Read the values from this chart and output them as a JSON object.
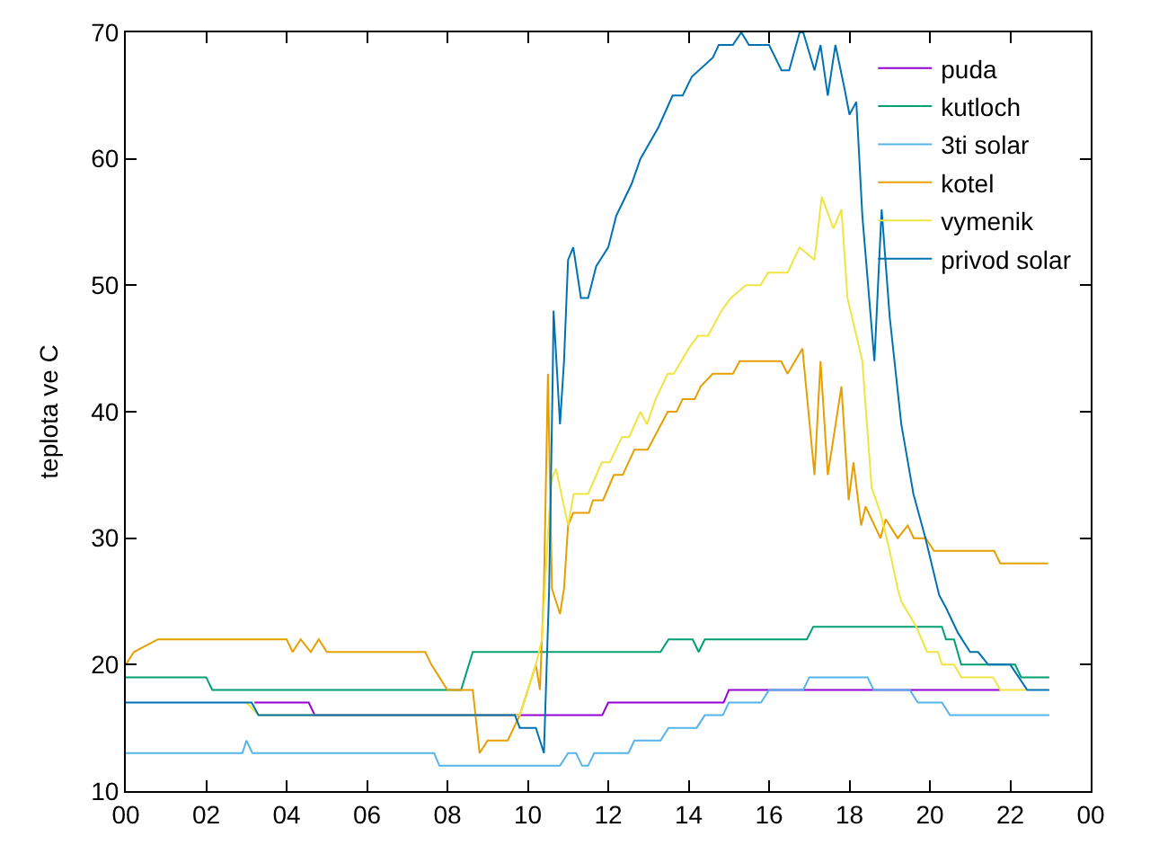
{
  "chart_data": {
    "type": "line",
    "ylabel": "teplota ve C",
    "xlim": [
      0,
      24
    ],
    "ylim": [
      10,
      70
    ],
    "xticks": [
      {
        "value": 0,
        "label": "00"
      },
      {
        "value": 2,
        "label": "02"
      },
      {
        "value": 4,
        "label": "04"
      },
      {
        "value": 6,
        "label": "06"
      },
      {
        "value": 8,
        "label": "08"
      },
      {
        "value": 10,
        "label": "10"
      },
      {
        "value": 12,
        "label": "12"
      },
      {
        "value": 14,
        "label": "14"
      },
      {
        "value": 16,
        "label": "16"
      },
      {
        "value": 18,
        "label": "18"
      },
      {
        "value": 20,
        "label": "20"
      },
      {
        "value": 22,
        "label": "22"
      },
      {
        "value": 24,
        "label": "00"
      }
    ],
    "yticks": [
      10,
      20,
      30,
      40,
      50,
      60,
      70
    ],
    "grid": false,
    "legend": "top right",
    "marker": "none",
    "line_style": "solid",
    "series": [
      {
        "name": "puda",
        "color": "#9400d3",
        "x": [
          3.2,
          4.55,
          4.7,
          11.85,
          12.0,
          14.87,
          15.0,
          21.75
        ],
        "values": [
          17,
          17,
          16,
          16,
          17,
          17,
          18,
          18
        ]
      },
      {
        "name": "kutloch",
        "color": "#009e73",
        "x": [
          0,
          2.0,
          2.15,
          8.34,
          8.63,
          13.3,
          13.5,
          14.1,
          14.25,
          14.4,
          16.94,
          17.1,
          20.3,
          20.4,
          20.6,
          20.78,
          22.12,
          22.27,
          22.97
        ],
        "values": [
          19,
          19,
          18,
          18,
          21,
          21,
          22,
          22,
          21,
          22,
          22,
          23,
          23,
          22,
          22,
          20,
          20,
          19,
          19
        ]
      },
      {
        "name": "3ti solar",
        "color": "#56b4e9",
        "x": [
          0,
          2.9,
          3.0,
          3.15,
          7.67,
          7.8,
          10.8,
          11.0,
          11.2,
          11.35,
          11.5,
          11.65,
          12.5,
          12.65,
          13.3,
          13.5,
          14.2,
          14.4,
          14.85,
          15.0,
          15.8,
          16.0,
          16.85,
          17.0,
          18.45,
          18.6,
          19.5,
          19.7,
          20.3,
          20.5,
          22.97
        ],
        "values": [
          13,
          13,
          14,
          13,
          13,
          12,
          12,
          13,
          13,
          12,
          12,
          13,
          13,
          14,
          14,
          15,
          15,
          16,
          16,
          17,
          17,
          18,
          18,
          19,
          19,
          18,
          18,
          17,
          17,
          16,
          16
        ]
      },
      {
        "name": "kotel",
        "color": "#e69f00",
        "x": [
          0,
          0.2,
          0.8,
          4.0,
          4.15,
          4.35,
          4.6,
          4.8,
          5.0,
          7.45,
          7.6,
          7.8,
          8.0,
          8.63,
          8.8,
          9.0,
          9.5,
          9.8,
          10.2,
          10.3,
          10.4,
          10.5,
          10.6,
          10.8,
          10.9,
          11.0,
          11.13,
          11.52,
          11.62,
          11.87,
          12.14,
          12.36,
          12.65,
          12.98,
          13.48,
          13.7,
          13.85,
          14.15,
          14.3,
          14.6,
          15.1,
          15.27,
          16.3,
          16.46,
          16.83,
          17.13,
          17.28,
          17.46,
          17.8,
          17.98,
          18.1,
          18.29,
          18.4,
          18.77,
          18.9,
          19.2,
          19.45,
          19.6,
          19.9,
          20.1,
          21.6,
          21.75,
          22.94
        ],
        "values": [
          20,
          21,
          22,
          22,
          21,
          22,
          21,
          22,
          21,
          21,
          20,
          19,
          18,
          18,
          13,
          14,
          14,
          16,
          20,
          18,
          26,
          43,
          26,
          24,
          26,
          31,
          32,
          32,
          33,
          33,
          35,
          35,
          37,
          37,
          40,
          40,
          41,
          41,
          42,
          43,
          43,
          44,
          44,
          43,
          45,
          35,
          44,
          35,
          42,
          33,
          36,
          31,
          32.5,
          30,
          31.5,
          30,
          31,
          30,
          30,
          29,
          29,
          28,
          28
        ]
      },
      {
        "name": "vymenik",
        "color": "#f0e442",
        "x": [
          3.0,
          3.3,
          9.8,
          10.2,
          10.35,
          10.58,
          10.7,
          11.0,
          11.14,
          11.5,
          11.84,
          12.04,
          12.34,
          12.52,
          12.8,
          12.96,
          13.18,
          13.48,
          13.63,
          14.0,
          14.23,
          14.48,
          14.82,
          15.05,
          15.42,
          15.79,
          15.97,
          16.46,
          16.76,
          17.13,
          17.31,
          17.6,
          17.8,
          17.95,
          18.32,
          18.55,
          18.77,
          19.0,
          19.2,
          19.29,
          19.66,
          19.93,
          20.2,
          20.3,
          20.6,
          20.78,
          21.57,
          21.75,
          22.4
        ],
        "values": [
          17,
          16,
          16,
          20,
          22,
          34.5,
          35.5,
          31,
          33.5,
          33.5,
          36,
          36,
          38,
          38,
          40,
          39,
          41,
          43,
          43,
          45,
          46,
          46,
          48,
          49,
          50,
          50,
          51,
          51,
          53,
          52,
          57,
          54.5,
          56,
          49,
          44,
          34,
          32,
          29,
          26,
          25,
          23,
          21,
          21,
          20,
          20,
          19,
          19,
          18,
          18
        ]
      },
      {
        "name": "privod solar",
        "color": "#0072b2",
        "x": [
          0,
          3.13,
          3.3,
          9.68,
          9.8,
          10.2,
          10.4,
          10.53,
          10.62,
          10.64,
          10.8,
          10.9,
          11.0,
          11.13,
          11.32,
          11.5,
          11.7,
          12.0,
          12.2,
          12.58,
          12.8,
          13.25,
          13.6,
          13.85,
          14.08,
          14.6,
          14.75,
          15.1,
          15.31,
          15.5,
          16.0,
          16.31,
          16.5,
          16.76,
          16.85,
          17.13,
          17.28,
          17.46,
          17.65,
          17.88,
          18.0,
          18.17,
          18.32,
          18.62,
          18.8,
          19.0,
          19.29,
          19.59,
          19.89,
          20.23,
          20.4,
          20.7,
          21.0,
          21.2,
          21.45,
          22.0,
          22.42,
          22.97
        ],
        "values": [
          17,
          17,
          16,
          16,
          15,
          15,
          13,
          26,
          43,
          48,
          39,
          44,
          52,
          53,
          49,
          49,
          51.5,
          53,
          55.5,
          58,
          60,
          62.5,
          65,
          65,
          66.5,
          68,
          69,
          69,
          70,
          69,
          69,
          67,
          67,
          70,
          70,
          67,
          69,
          65,
          69,
          65.5,
          63.5,
          64.5,
          55.5,
          44,
          56,
          47.5,
          39,
          33.5,
          30,
          25.5,
          24.5,
          22.5,
          21,
          21,
          20,
          20,
          18,
          18
        ]
      }
    ]
  }
}
